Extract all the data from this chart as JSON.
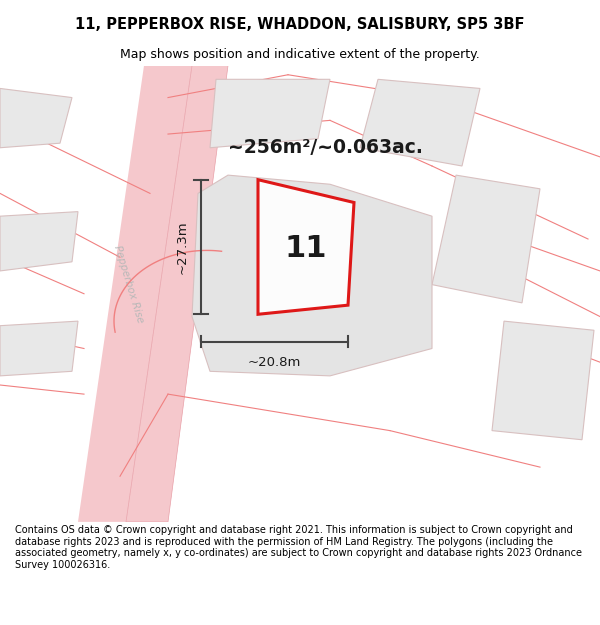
{
  "title_line1": "11, PEPPERBOX RISE, WHADDON, SALISBURY, SP5 3BF",
  "title_line2": "Map shows position and indicative extent of the property.",
  "footer_text": "Contains OS data © Crown copyright and database right 2021. This information is subject to Crown copyright and database rights 2023 and is reproduced with the permission of HM Land Registry. The polygons (including the associated geometry, namely x, y co-ordinates) are subject to Crown copyright and database rights 2023 Ordnance Survey 100026316.",
  "background_color": "#ffffff",
  "area_text": "~256m²/~0.063ac.",
  "number_label": "11",
  "dim_width": "~20.8m",
  "dim_height": "~27.3m",
  "road_label": "Pepperbox Rise",
  "road_color": "#f5c8cc",
  "road_edge_color": "#e8a0a8",
  "building_fill": "#e8e8e8",
  "building_edge": "#d8c0c0",
  "boundary_color": "#f08080",
  "plot_edge_color": "#dd0000",
  "plot_fill_color": "#ffffff",
  "dim_line_color": "#444444",
  "label_color": "#b8b8b8",
  "map_bg": "#f7f5f5"
}
